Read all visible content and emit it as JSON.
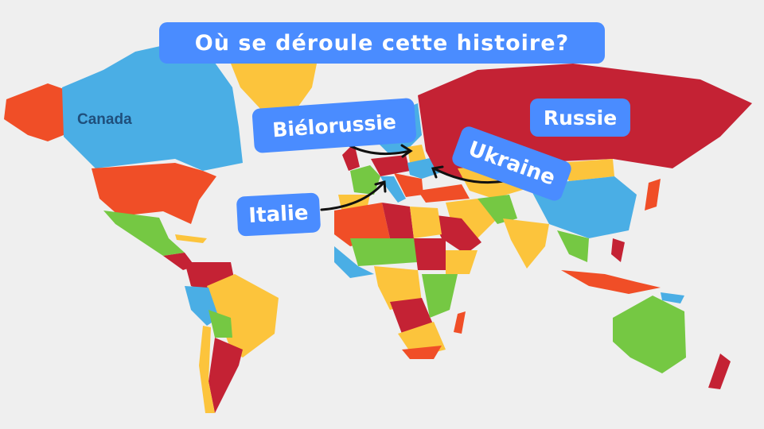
{
  "title": "Où se déroule cette histoire?",
  "map_labels": {
    "canada": "Canada",
    "belarus": "Biélorussie",
    "russia": "Russie",
    "ukraine": "Ukraine",
    "italy": "Italie"
  },
  "colors": {
    "background": "#efefef",
    "label_box": "#4a8cff",
    "blue": "#4aaee5",
    "red": "#c42234",
    "orange": "#f04e27",
    "yellow": "#fcc43c",
    "green": "#75c843",
    "canada_text": "#1f4f7c"
  }
}
